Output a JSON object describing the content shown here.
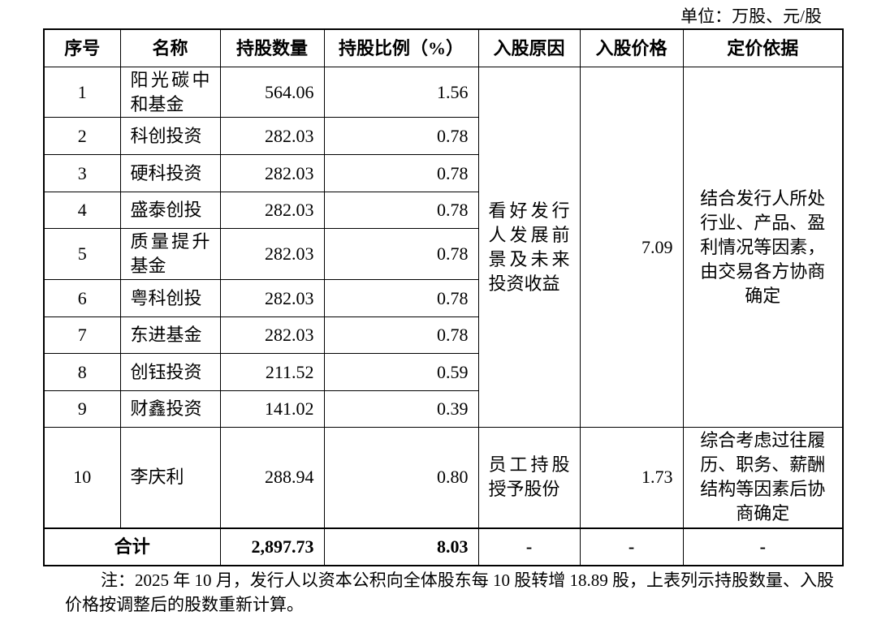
{
  "unit": "单位：万股、元/股",
  "table": {
    "header": [
      "序号",
      "名称",
      "持股数量",
      "持股比例（%）",
      "入股原因",
      "入股价格",
      "定价依据"
    ],
    "rows": [
      {
        "no": "1",
        "name": "阳光碳中和基金",
        "shares": "564.06",
        "ratio": "1.56"
      },
      {
        "no": "2",
        "name": "科创投资",
        "shares": "282.03",
        "ratio": "0.78"
      },
      {
        "no": "3",
        "name": "硬科投资",
        "shares": "282.03",
        "ratio": "0.78"
      },
      {
        "no": "4",
        "name": "盛泰创投",
        "shares": "282.03",
        "ratio": "0.78"
      },
      {
        "no": "5",
        "name": "质量提升基金",
        "shares": "282.03",
        "ratio": "0.78"
      },
      {
        "no": "6",
        "name": "粤科创投",
        "shares": "282.03",
        "ratio": "0.78"
      },
      {
        "no": "7",
        "name": "东进基金",
        "shares": "282.03",
        "ratio": "0.78"
      },
      {
        "no": "8",
        "name": "创钰投资",
        "shares": "211.52",
        "ratio": "0.59"
      },
      {
        "no": "9",
        "name": "财鑫投资",
        "shares": "141.02",
        "ratio": "0.39"
      },
      {
        "no": "10",
        "name": "李庆利",
        "shares": "288.94",
        "ratio": "0.80"
      }
    ],
    "groups": [
      {
        "reason": "看好发行人发展前景及未来投资收益",
        "price": "7.09",
        "basis": "结合发行人所处行业、产品、盈利情况等因素，由交易各方协商确定"
      },
      {
        "reason": "员工持股授予股份",
        "price": "1.73",
        "basis": "综合考虑过往履历、职务、薪酬结构等因素后协商确定"
      }
    ],
    "total": {
      "label": "合计",
      "shares": "2,897.73",
      "ratio": "8.03",
      "reason": "-",
      "price": "-",
      "basis": "-"
    }
  },
  "note": "注：2025 年 10 月，发行人以资本公积向全体股东每 10 股转增 18.89 股，上表列示持股数量、入股价格按调整后的股数重新计算。"
}
